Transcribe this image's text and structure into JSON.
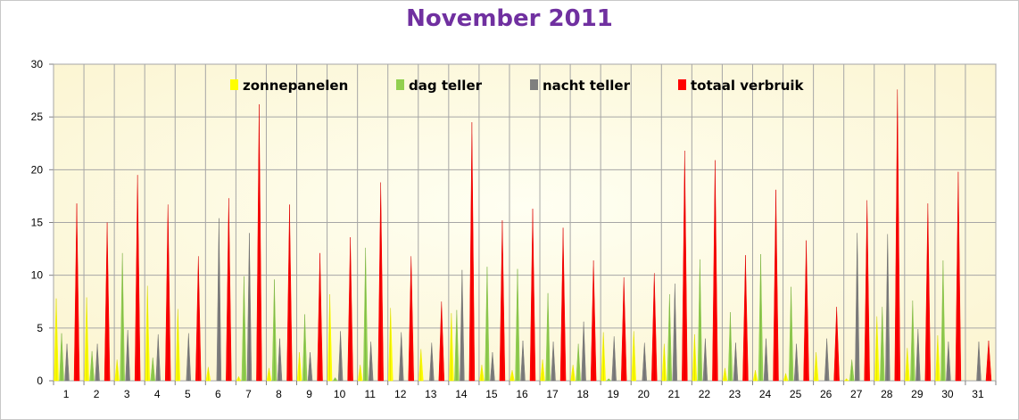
{
  "title": "November 2011",
  "chart_data": {
    "type": "bar",
    "title": "November 2011",
    "categories": [
      "1",
      "2",
      "3",
      "4",
      "5",
      "6",
      "7",
      "8",
      "9",
      "10",
      "11",
      "12",
      "13",
      "14",
      "15",
      "16",
      "17",
      "18",
      "19",
      "20",
      "21",
      "22",
      "23",
      "24",
      "25",
      "26",
      "27",
      "28",
      "29",
      "30",
      "31"
    ],
    "ylim": [
      0,
      30
    ],
    "yticks": [
      0,
      5,
      10,
      15,
      20,
      25,
      30
    ],
    "grid": true,
    "legend_position": "top",
    "series": [
      {
        "name": "zonnepanelen",
        "color": "#ffff00",
        "values": [
          7.8,
          7.9,
          2.0,
          9.0,
          6.8,
          1.3,
          0.4,
          1.2,
          2.7,
          8.2,
          1.5,
          6.9,
          3.0,
          6.4,
          1.5,
          1.0,
          2.0,
          1.5,
          4.6,
          4.7,
          3.5,
          4.4,
          1.2,
          1.0,
          0.7,
          2.7,
          0.2,
          6.1,
          3.1,
          4.3,
          0
        ]
      },
      {
        "name": "dag teller",
        "color": "#92d050",
        "values": [
          4.5,
          2.8,
          12.1,
          2.2,
          0,
          0,
          9.9,
          9.6,
          6.3,
          0.3,
          12.6,
          0,
          0,
          6.7,
          10.8,
          10.6,
          8.3,
          3.5,
          0.2,
          0,
          8.2,
          11.5,
          6.5,
          12.0,
          8.9,
          0,
          2.0,
          7.0,
          7.6,
          11.4,
          0
        ]
      },
      {
        "name": "nacht teller",
        "color": "#7f7f7f",
        "values": [
          3.5,
          3.5,
          4.8,
          4.4,
          4.5,
          15.4,
          14.0,
          4.0,
          2.7,
          4.7,
          3.7,
          4.6,
          3.6,
          10.5,
          2.7,
          3.8,
          3.7,
          5.6,
          4.2,
          3.6,
          9.2,
          4.0,
          3.6,
          4.0,
          3.5,
          4.0,
          14.0,
          13.9,
          4.9,
          3.7,
          3.7
        ]
      },
      {
        "name": "totaal verbruik",
        "color": "#ff0000",
        "values": [
          16.8,
          15.0,
          19.5,
          16.7,
          11.8,
          17.3,
          26.2,
          16.7,
          12.1,
          13.6,
          18.8,
          11.8,
          7.5,
          24.5,
          15.2,
          16.3,
          14.5,
          11.4,
          9.8,
          10.2,
          21.8,
          20.9,
          11.9,
          18.1,
          13.3,
          7.0,
          17.1,
          27.6,
          16.8,
          19.8,
          3.8
        ]
      }
    ]
  }
}
